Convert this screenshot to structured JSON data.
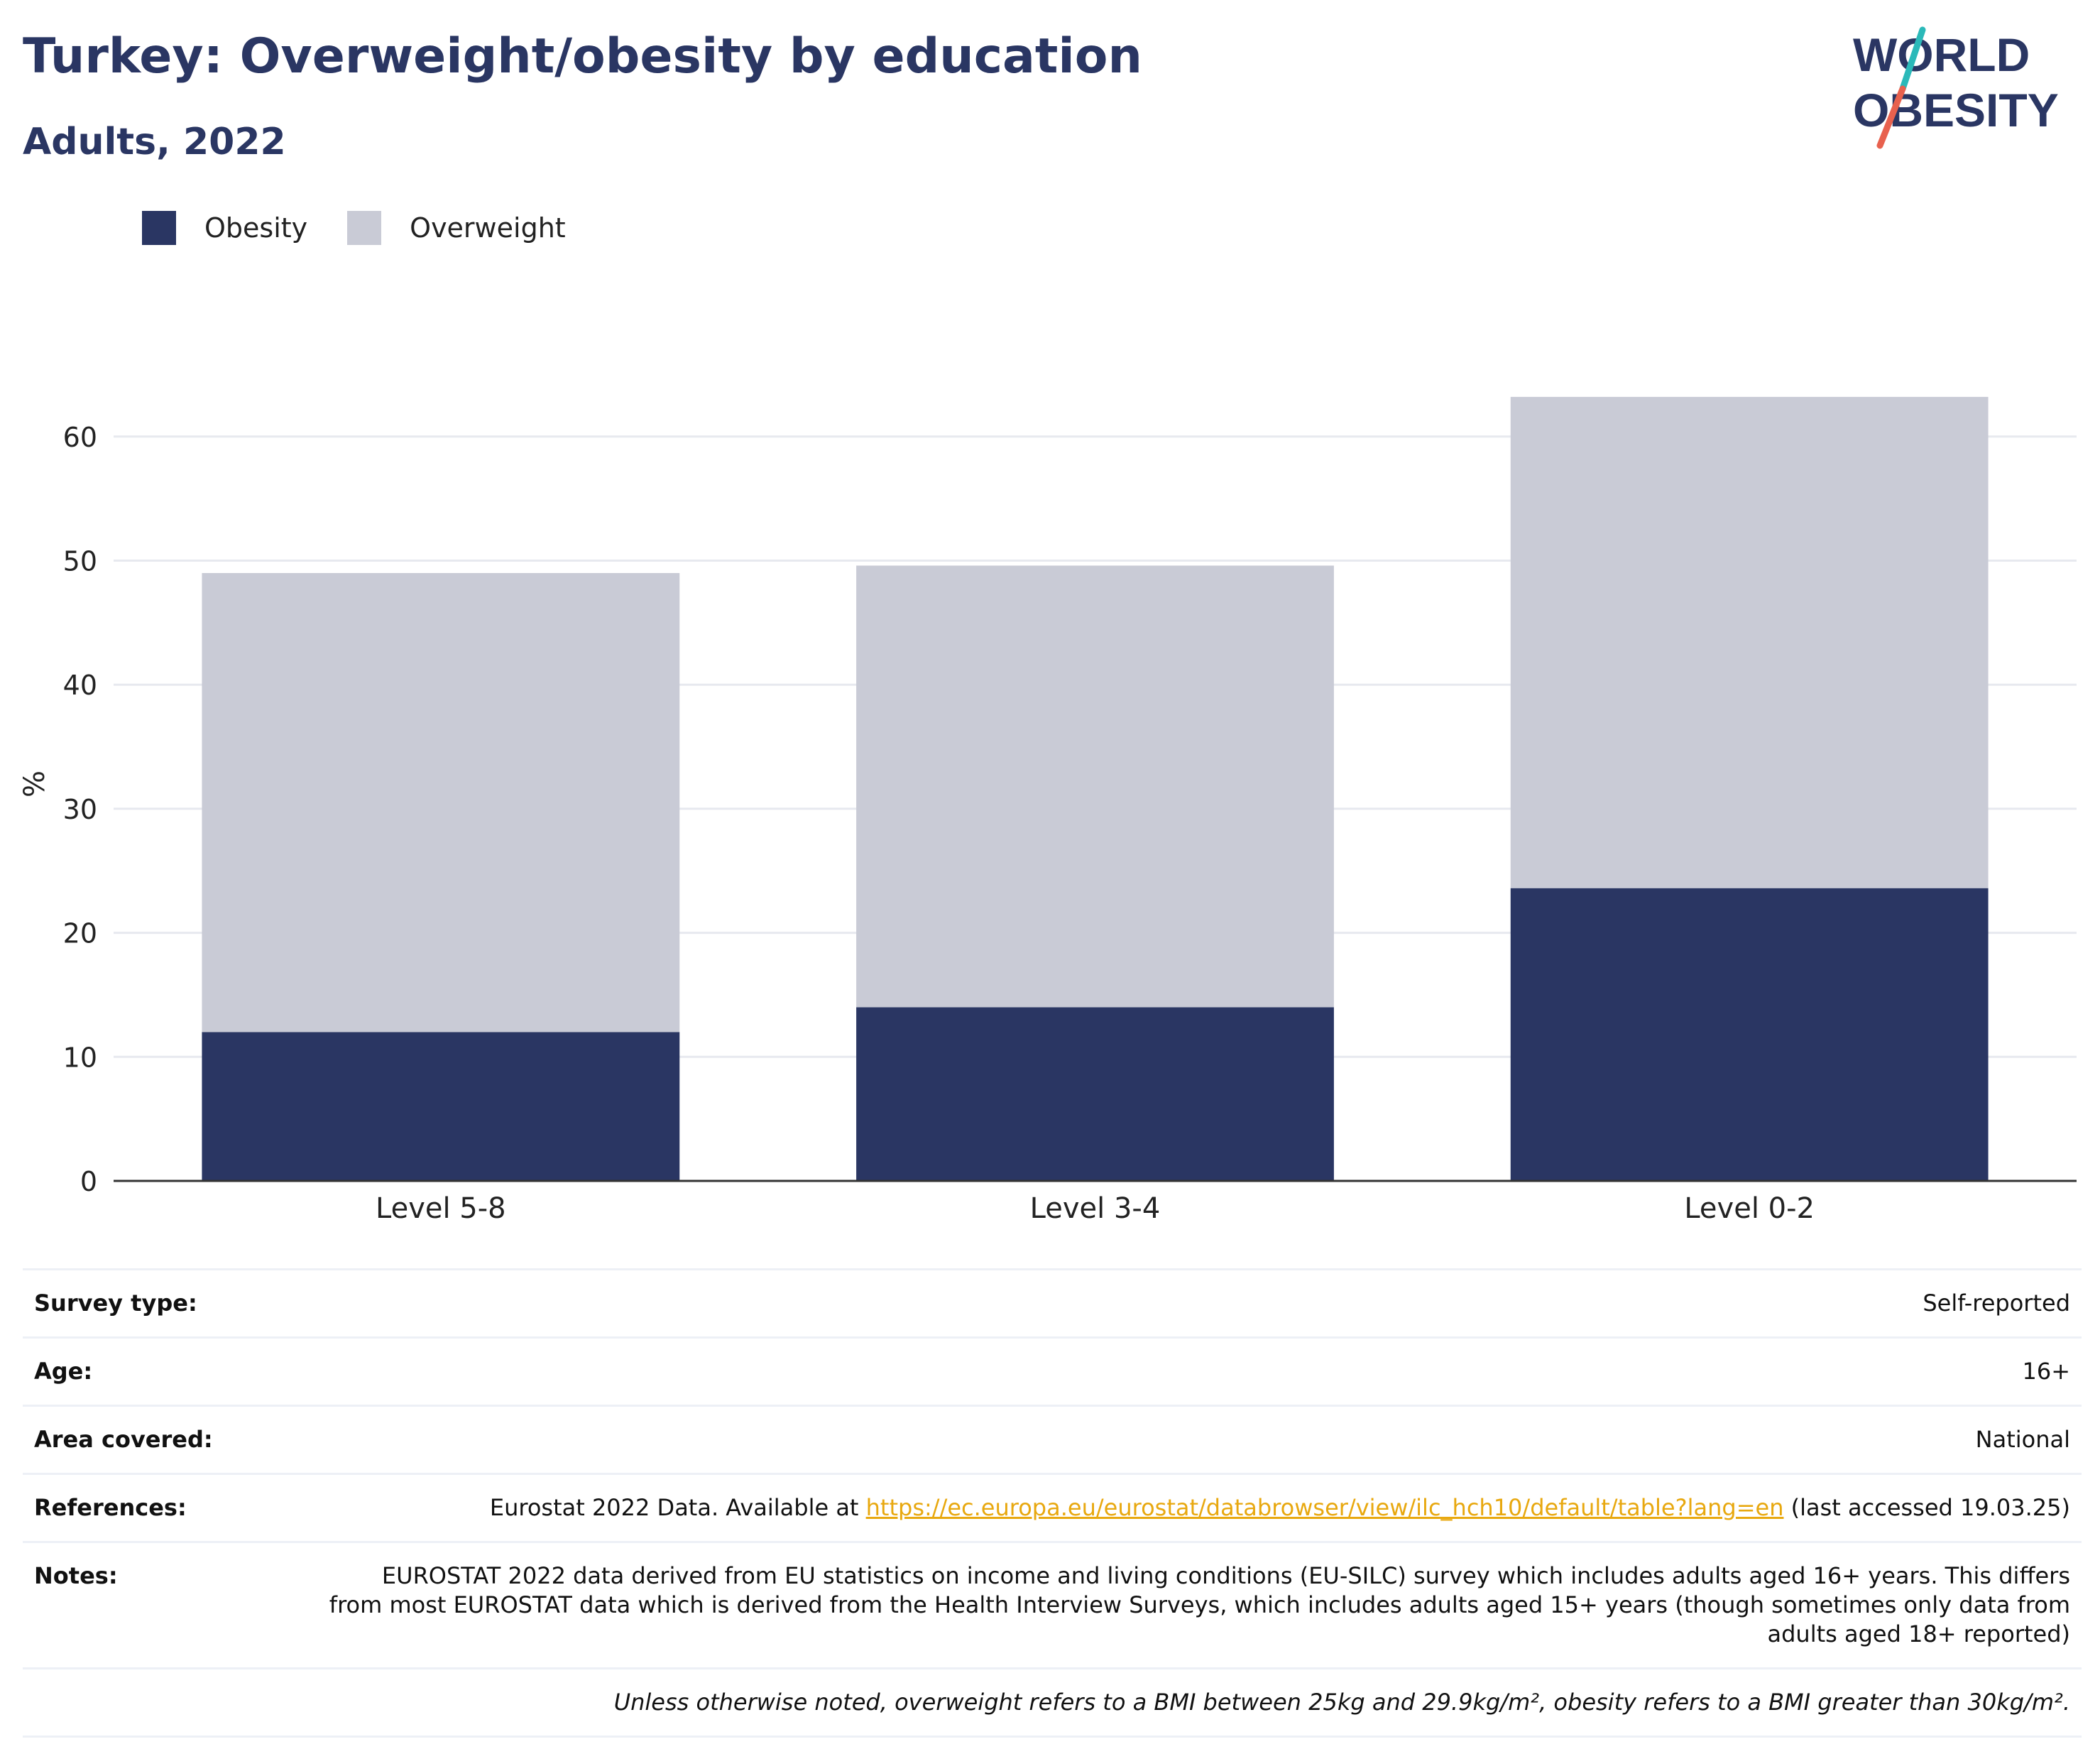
{
  "header": {
    "title": "Turkey: Overweight/obesity by education",
    "subtitle": "Adults, 2022"
  },
  "logo": {
    "line1": "WORLD",
    "line2": "OBESITY",
    "colors": {
      "text": "#2a3663",
      "slash_top": "#2bb9b9",
      "slash_bottom": "#e8614e"
    }
  },
  "legend": [
    {
      "label": "Obesity",
      "color": "#2a3663"
    },
    {
      "label": "Overweight",
      "color": "#c9cbd6"
    }
  ],
  "chart_data": {
    "type": "bar",
    "stacked": true,
    "categories": [
      "Level 5-8",
      "Level 3-4",
      "Level 0-2"
    ],
    "series": [
      {
        "name": "Obesity",
        "color": "#2a3663",
        "values": [
          12.0,
          14.0,
          23.6
        ]
      },
      {
        "name": "Overweight",
        "color": "#c9cbd6",
        "values": [
          37.0,
          35.6,
          39.6
        ]
      }
    ],
    "totals": [
      49.0,
      49.6,
      63.2
    ],
    "ylabel": "%",
    "ylim": [
      0,
      65
    ],
    "yticks": [
      0,
      10,
      20,
      30,
      40,
      50,
      60
    ],
    "grid": true,
    "legend_position": "top-left"
  },
  "info": {
    "survey_type": {
      "label": "Survey type:",
      "value": "Self-reported"
    },
    "age": {
      "label": "Age:",
      "value": "16+"
    },
    "area": {
      "label": "Area covered:",
      "value": "National"
    },
    "references": {
      "label": "References:",
      "prefix": "Eurostat 2022 Data. Available at ",
      "link": "https://ec.europa.eu/eurostat/databrowser/view/ilc_hch10/default/table?lang=en",
      "suffix": " (last accessed 19.03.25)"
    },
    "notes": {
      "label": "Notes:",
      "value": "EUROSTAT 2022 data derived from EU statistics on income and living conditions (EU-SILC) survey which includes adults aged 16+ years. This differs from most EUROSTAT data which is derived from the Health Interview Surveys, which includes adults aged 15+ years (though sometimes only data from adults aged 18+ reported)"
    },
    "footnote": "Unless otherwise noted, overweight refers to a BMI between 25kg and 29.9kg/m², obesity refers to a BMI greater than 30kg/m²."
  }
}
